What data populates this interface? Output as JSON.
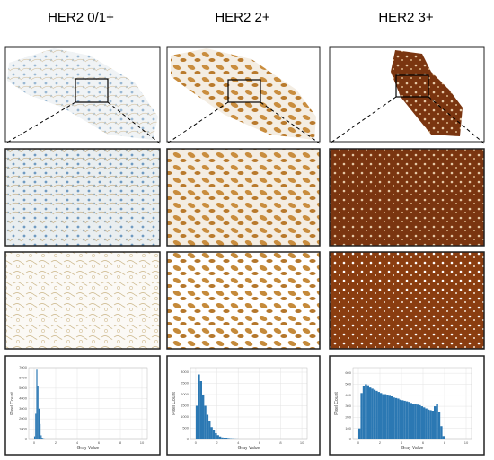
{
  "panels": [
    {
      "title": "HER2 0/1+"
    },
    {
      "title": "HER2 2+"
    },
    {
      "title": "HER2 3+"
    }
  ],
  "chart_data": [
    {
      "type": "histogram",
      "xlabel": "Gray Value",
      "ylabel": "Pixel Count",
      "color": "#2b78b3",
      "bins": [
        0,
        0.1,
        0.2,
        0.3,
        0.4,
        0.5,
        0.6,
        0.7,
        0.8,
        0.9,
        1.0
      ],
      "counts": [
        300,
        2500,
        6800,
        5200,
        3000,
        1500,
        400,
        100,
        30,
        10
      ],
      "xlim": [
        -0.5,
        10.5
      ],
      "xticks": [
        0,
        2,
        4,
        6,
        8,
        10
      ],
      "ylim": [
        0,
        7000
      ],
      "yticks": [
        0,
        1000,
        2000,
        3000,
        4000,
        5000,
        6000,
        7000
      ],
      "grid": true
    },
    {
      "type": "histogram",
      "xlabel": "Gray Value",
      "ylabel": "Pixel Count",
      "color": "#2b78b3",
      "bins": [
        0,
        0.2,
        0.4,
        0.6,
        0.8,
        1.0,
        1.2,
        1.4,
        1.6,
        1.8,
        2.0,
        2.2,
        2.4,
        2.6,
        2.8,
        3.0,
        3.2,
        3.4,
        3.6,
        3.8,
        4.0
      ],
      "counts": [
        1500,
        2900,
        2600,
        2000,
        1500,
        1100,
        800,
        550,
        400,
        280,
        190,
        130,
        90,
        60,
        40,
        25,
        15,
        10,
        5,
        3
      ],
      "xlim": [
        -0.5,
        10.5
      ],
      "xticks": [
        0,
        2,
        4,
        6,
        8,
        10
      ],
      "ylim": [
        0,
        3200
      ],
      "yticks": [
        0,
        500,
        1000,
        1500,
        2000,
        2500,
        3000
      ],
      "grid": true
    },
    {
      "type": "histogram",
      "xlabel": "Gray Value",
      "ylabel": "Pixel Count",
      "color": "#2b78b3",
      "bins": [
        0,
        0.2,
        0.4,
        0.6,
        0.8,
        1.0,
        1.2,
        1.4,
        1.6,
        1.8,
        2.0,
        2.2,
        2.4,
        2.6,
        2.8,
        3.0,
        3.2,
        3.4,
        3.6,
        3.8,
        4.0,
        4.2,
        4.4,
        4.6,
        4.8,
        5.0,
        5.2,
        5.4,
        5.6,
        5.8,
        6.0,
        6.2,
        6.4,
        6.6,
        6.8,
        7.0,
        7.2,
        7.4,
        7.6,
        7.8,
        8.0
      ],
      "counts": [
        100,
        420,
        480,
        500,
        490,
        470,
        460,
        450,
        440,
        430,
        420,
        410,
        410,
        400,
        395,
        390,
        380,
        375,
        370,
        360,
        355,
        350,
        345,
        340,
        330,
        325,
        320,
        315,
        310,
        300,
        290,
        280,
        270,
        265,
        260,
        300,
        320,
        250,
        120,
        30
      ],
      "xlim": [
        -0.5,
        10.5
      ],
      "xticks": [
        0,
        2,
        4,
        6,
        8,
        10
      ],
      "ylim": [
        0,
        650
      ],
      "yticks": [
        0,
        100,
        200,
        300,
        400,
        500,
        600
      ],
      "grid": true
    }
  ]
}
